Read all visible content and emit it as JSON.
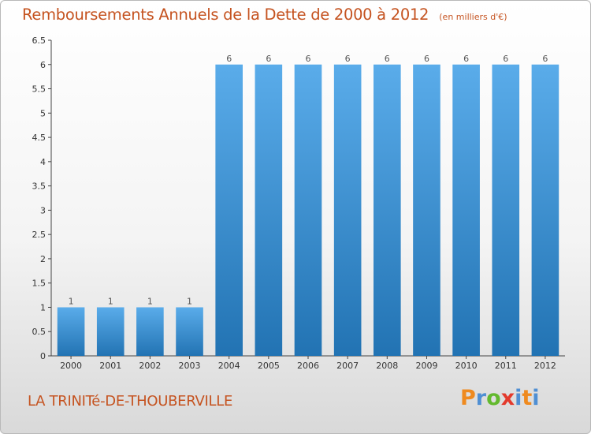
{
  "header": {
    "title": "Remboursements Annuels de la Dette de 2000 à 2012",
    "unit": "(en milliers d'€)"
  },
  "footer": {
    "location": "LA TRINITé-DE-THOUBERVILLE",
    "logo_text": "Proxiti"
  },
  "colors": {
    "title": "#c55320",
    "bar_light": "#5aacea",
    "bar_dark": "#2273b3",
    "axis": "#444444"
  },
  "chart_data": {
    "type": "bar",
    "title": "Remboursements Annuels de la Dette de 2000 à 2012",
    "categories": [
      "2000",
      "2001",
      "2002",
      "2003",
      "2004",
      "2005",
      "2006",
      "2007",
      "2008",
      "2009",
      "2010",
      "2011",
      "2012"
    ],
    "values": [
      1,
      1,
      1,
      1,
      6,
      6,
      6,
      6,
      6,
      6,
      6,
      6,
      6
    ],
    "data_labels": [
      "1",
      "1",
      "1",
      "1",
      "6",
      "6",
      "6",
      "6",
      "6",
      "6",
      "6",
      "6",
      "6"
    ],
    "y_ticks": [
      "0",
      "0.5",
      "1",
      "1.5",
      "2",
      "2.5",
      "3",
      "3.5",
      "4",
      "4.5",
      "5",
      "5.5",
      "6",
      "6.5"
    ],
    "ylim": [
      0,
      6.5
    ],
    "xlabel": "",
    "ylabel": "",
    "grid": false,
    "legend": "none"
  }
}
